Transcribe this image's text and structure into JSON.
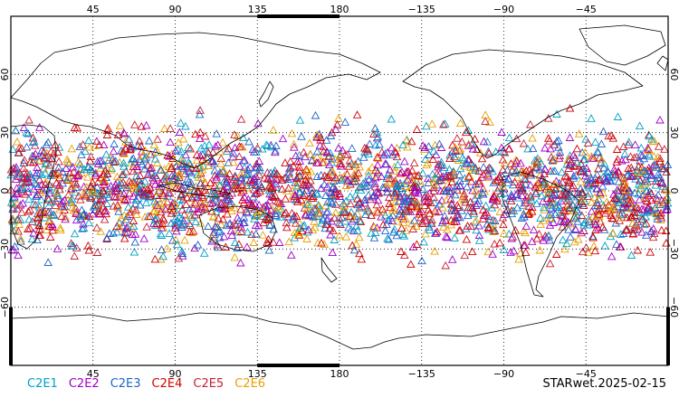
{
  "map": {
    "top_lon_labels": [
      "45",
      "90",
      "135",
      "180",
      "−135",
      "−90",
      "−45"
    ],
    "bottom_lon_labels": [
      "45",
      "90",
      "135",
      "180",
      "−135",
      "−90",
      "−45"
    ],
    "left_lat_labels": [
      "60",
      "30",
      "0",
      "−30",
      "−60"
    ],
    "right_lat_labels": [
      "60",
      "30",
      "0",
      "−30",
      "−60"
    ],
    "lon_range": [
      0,
      360
    ],
    "lat_range": [
      -90,
      90
    ],
    "grid": true,
    "coastline_color": "#000000"
  },
  "legend": {
    "items": [
      {
        "label": "C2E1",
        "color": "#00a0c8"
      },
      {
        "label": "C2E2",
        "color": "#a000c8"
      },
      {
        "label": "C2E3",
        "color": "#1e64c8"
      },
      {
        "label": "C2E4",
        "color": "#d20000"
      },
      {
        "label": "C2E5",
        "color": "#c81e32"
      },
      {
        "label": "C2E6",
        "color": "#e6a000"
      }
    ]
  },
  "footer": {
    "product_label": "STARwet.2025-02-15"
  },
  "observations": {
    "marker": "triangle-outline",
    "lat_extent": [
      -45,
      45
    ]
  }
}
